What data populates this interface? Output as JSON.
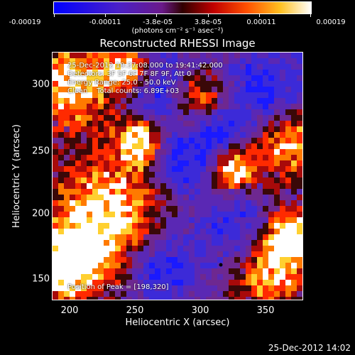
{
  "colorbar": {
    "ticks": [
      "-0.00019",
      "-0.00011",
      "-3.8e-05",
      "3.8e-05",
      "0.00011",
      "0.00019"
    ],
    "units": "(photons cm⁻² s⁻¹ asec⁻²)",
    "colors": [
      "#0000ff",
      "#4a20c8",
      "#7a2a9a",
      "#9a1010",
      "#ff2000",
      "#ff8a00",
      "#ffe040",
      "#ffffff"
    ]
  },
  "title": "Reconstructed RHESSI Image",
  "info": {
    "time_range": "25-Dec-2012 19:37:08.000 to 19:41:42.000",
    "detectors": "Detectors: 3F 5F 6F 7F 8F 9F, Att 0",
    "energy": "Energy Range: 25.0 - 50.0 keV",
    "clean": "Clean    Total counts: 6.89E+03",
    "peak": "Position of Peak = [198,320]"
  },
  "axes": {
    "xlabel": "Heliocentric X (arcsec)",
    "ylabel": "Heliocentric Y (arcsec)",
    "xticks": [
      "200",
      "250",
      "300",
      "350"
    ],
    "yticks": [
      "300",
      "250",
      "200",
      "150"
    ],
    "xlim": [
      190,
      378
    ],
    "ylim": [
      132,
      318
    ]
  },
  "timestamp": "25-Dec-2012 14:02"
}
